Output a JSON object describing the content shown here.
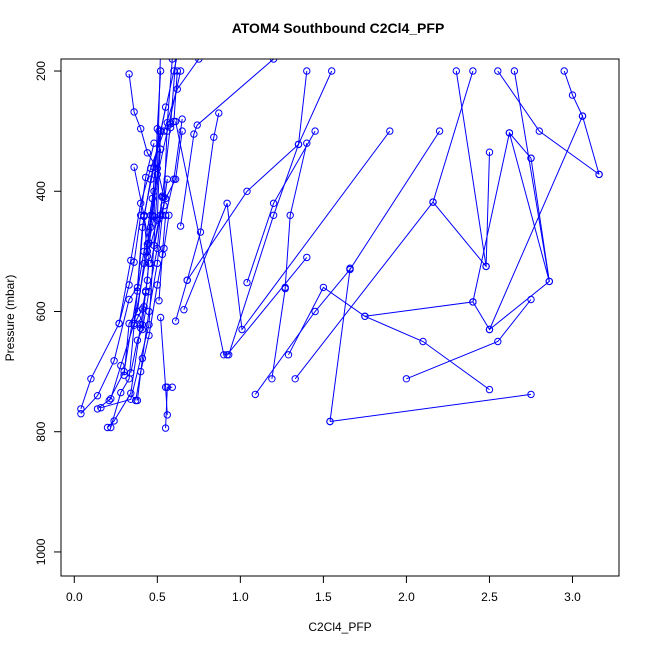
{
  "chart_data": {
    "type": "line",
    "title": "ATOM4 Southbound C2Cl4_PFP",
    "xlabel": "C2Cl4_PFP",
    "ylabel": "Pressure (mbar)",
    "xlim": [
      -0.08,
      3.28
    ],
    "ylim": [
      1040,
      180
    ],
    "y_reversed": true,
    "x_ticks": [
      {
        "value": 0.0,
        "label": "0.0"
      },
      {
        "value": 0.5,
        "label": "0.5"
      },
      {
        "value": 1.0,
        "label": "1.0"
      },
      {
        "value": 1.5,
        "label": "1.5"
      },
      {
        "value": 2.0,
        "label": "2.0"
      },
      {
        "value": 2.5,
        "label": "2.5"
      },
      {
        "value": 3.0,
        "label": "3.0"
      }
    ],
    "y_ticks": [
      {
        "value": 200,
        "label": "200"
      },
      {
        "value": 400,
        "label": "400"
      },
      {
        "value": 600,
        "label": "600"
      },
      {
        "value": 800,
        "label": "800"
      },
      {
        "value": 1000,
        "label": "1000"
      }
    ],
    "grid": false,
    "color": "#0000ff",
    "marker": "open-circle",
    "series": [
      {
        "x": [
          0.04,
          0.1,
          0.27,
          0.34,
          0.4,
          0.46,
          0.54,
          0.62,
          0.75,
          1.05,
          1.6
        ],
        "y": [
          762,
          712,
          620,
          515,
          420,
          362,
          300,
          230,
          180,
          140,
          90
        ]
      },
      {
        "x": [
          0.04,
          0.14,
          0.24,
          0.33,
          0.38,
          0.41,
          0.46,
          0.52
        ],
        "y": [
          770,
          740,
          682,
          580,
          560,
          460,
          380,
          300
        ]
      },
      {
        "x": [
          0.14,
          0.22,
          0.28,
          0.36,
          0.44,
          0.48,
          0.56,
          0.64
        ],
        "y": [
          762,
          745,
          690,
          620,
          500,
          400,
          300,
          200
        ]
      },
      {
        "x": [
          0.2,
          0.24,
          0.34,
          0.4,
          0.44,
          0.46,
          0.52
        ],
        "y": [
          793,
          782,
          736,
          622,
          548,
          460,
          330
        ]
      },
      {
        "x": [
          0.22,
          0.28,
          0.33,
          0.38,
          0.42,
          0.48,
          0.55
        ],
        "y": [
          793,
          735,
          712,
          566,
          440,
          360,
          260
        ]
      },
      {
        "x": [
          0.34,
          0.38,
          0.41,
          0.45,
          0.5,
          0.53
        ],
        "y": [
          702,
          648,
          630,
          567,
          495,
          408
        ]
      },
      {
        "x": [
          0.3,
          0.33,
          0.38,
          0.42,
          0.47,
          0.52
        ],
        "y": [
          706,
          620,
          600,
          520,
          440,
          330
        ]
      },
      {
        "x": [
          0.27,
          0.33,
          0.36,
          0.4,
          0.43,
          0.48
        ],
        "y": [
          620,
          556,
          518,
          440,
          377,
          320
        ]
      },
      {
        "x": [
          0.33,
          0.36,
          0.4,
          0.44,
          0.5,
          0.54
        ],
        "y": [
          205,
          268,
          296,
          336,
          362,
          410
        ]
      },
      {
        "x": [
          0.38,
          0.41,
          0.45,
          0.5,
          0.53,
          0.56
        ],
        "y": [
          748,
          678,
          600,
          520,
          440,
          380
        ]
      },
      {
        "x": [
          0.37,
          0.4,
          0.45,
          0.5,
          0.54,
          0.57
        ],
        "y": [
          748,
          700,
          640,
          556,
          495,
          440
        ]
      },
      {
        "x": [
          0.52,
          0.55,
          0.56
        ],
        "y": [
          610,
          726,
          772
        ]
      },
      {
        "x": [
          0.55,
          0.56,
          0.59
        ],
        "y": [
          794,
          726,
          726
        ]
      },
      {
        "x": [
          0.51,
          0.53,
          0.55,
          0.6,
          0.65
        ],
        "y": [
          582,
          505,
          440,
          380,
          280
        ]
      },
      {
        "x": [
          0.46,
          0.52,
          0.55,
          0.61,
          0.65
        ],
        "y": [
          520,
          440,
          412,
          380,
          300
        ]
      },
      {
        "x": [
          0.61,
          0.68,
          0.76,
          0.84,
          0.87
        ],
        "y": [
          616,
          548,
          468,
          310,
          270
        ]
      },
      {
        "x": [
          0.64,
          0.72,
          0.74,
          1.2,
          1.5
        ],
        "y": [
          458,
          305,
          290,
          180,
          90
        ]
      },
      {
        "x": [
          0.68,
          1.04,
          1.35,
          1.4
        ],
        "y": [
          548,
          400,
          322,
          200
        ]
      },
      {
        "x": [
          0.61,
          0.9,
          0.92,
          1.4
        ],
        "y": [
          284,
          672,
          672,
          510
        ]
      },
      {
        "x": [
          0.66,
          0.92,
          1.01,
          1.9
        ],
        "y": [
          597,
          420,
          630,
          300
        ]
      },
      {
        "x": [
          0.93,
          1.2,
          1.35,
          1.55
        ],
        "y": [
          672,
          440,
          322,
          200
        ]
      },
      {
        "x": [
          1.04,
          1.2,
          1.45
        ],
        "y": [
          552,
          420,
          300
        ]
      },
      {
        "x": [
          1.09,
          1.45,
          1.66,
          2.2
        ],
        "y": [
          738,
          600,
          530,
          300
        ]
      },
      {
        "x": [
          1.19,
          1.27,
          1.27,
          1.3,
          1.4
        ],
        "y": [
          712,
          562,
          560,
          440,
          320
        ]
      },
      {
        "x": [
          1.29,
          1.5,
          1.75,
          2.1,
          2.5
        ],
        "y": [
          672,
          560,
          608,
          650,
          730
        ]
      },
      {
        "x": [
          1.33,
          2.16,
          2.48,
          2.5
        ],
        "y": [
          712,
          418,
          525,
          335
        ]
      },
      {
        "x": [
          1.54,
          1.66,
          1.66
        ],
        "y": [
          783,
          530,
          528
        ]
      },
      {
        "x": [
          1.54,
          2.75
        ],
        "y": [
          783,
          738
        ]
      },
      {
        "x": [
          1.75,
          2.4,
          2.62,
          2.75
        ],
        "y": [
          608,
          584,
          303,
          345
        ]
      },
      {
        "x": [
          2.0,
          2.55,
          2.75
        ],
        "y": [
          712,
          650,
          580
        ]
      },
      {
        "x": [
          2.4,
          2.5,
          3.06,
          3.16
        ],
        "y": [
          584,
          630,
          275,
          372
        ]
      },
      {
        "x": [
          2.5,
          2.86,
          2.75
        ],
        "y": [
          630,
          550,
          345
        ]
      },
      {
        "x": [
          2.62,
          2.86,
          2.65
        ],
        "y": [
          303,
          550,
          200
        ]
      },
      {
        "x": [
          3.06,
          3.0,
          2.95
        ],
        "y": [
          275,
          240,
          200
        ]
      },
      {
        "x": [
          3.16,
          2.8,
          2.55
        ],
        "y": [
          372,
          300,
          200
        ]
      },
      {
        "x": [
          2.16,
          2.4
        ],
        "y": [
          418,
          200
        ]
      },
      {
        "x": [
          2.48,
          2.3
        ],
        "y": [
          525,
          200
        ]
      },
      {
        "x": [
          0.36,
          0.38,
          0.41,
          0.43,
          0.45
        ],
        "y": [
          623,
          611,
          596,
          566,
          520
        ]
      },
      {
        "x": [
          0.4,
          0.41,
          0.42,
          0.43
        ],
        "y": [
          628,
          622,
          592,
          568
        ]
      },
      {
        "x": [
          0.16,
          0.34,
          0.45,
          0.52,
          0.6,
          0.68
        ],
        "y": [
          760,
          746,
          622,
          300,
          200,
          100
        ]
      },
      {
        "x": [
          0.21,
          0.3,
          0.42,
          0.47,
          0.51
        ],
        "y": [
          748,
          700,
          500,
          412,
          300
        ]
      },
      {
        "x": [
          0.36,
          0.42,
          0.44,
          0.5,
          0.52
        ],
        "y": [
          360,
          440,
          508,
          448,
          300
        ]
      },
      {
        "x": [
          0.42,
          0.45,
          0.48,
          0.5,
          0.52
        ],
        "y": [
          442,
          486,
          442,
          296,
          200
        ]
      },
      {
        "x": [
          0.48,
          0.51,
          0.53,
          0.58,
          0.62
        ],
        "y": [
          490,
          446,
          410,
          288,
          150
        ]
      },
      {
        "x": [
          0.58,
          0.6,
          0.62
        ],
        "y": [
          294,
          284,
          200
        ]
      },
      {
        "x": [
          0.52,
          0.54,
          0.56,
          0.59
        ],
        "y": [
          440,
          424,
          286,
          180
        ]
      },
      {
        "x": [
          0.44,
          0.46,
          0.5,
          0.52
        ],
        "y": [
          488,
          440,
          372,
          160
        ]
      }
    ]
  }
}
